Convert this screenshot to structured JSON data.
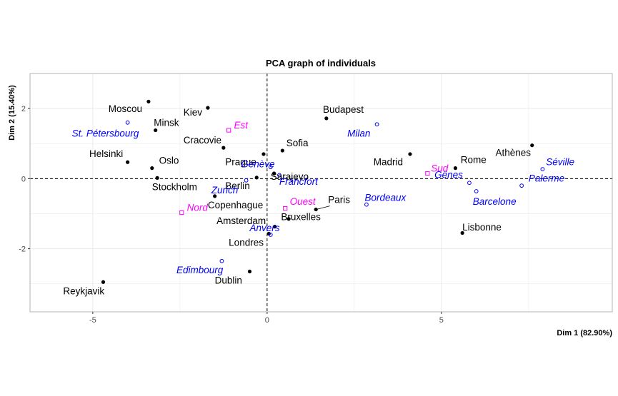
{
  "chart_data": {
    "type": "scatter",
    "title": "PCA graph of individuals",
    "xlabel": "Dim 1 (82.90%)",
    "ylabel": "Dim 2 (15.40%)",
    "xlim": [
      -6.8,
      9.9
    ],
    "ylim": [
      -3.8,
      3.0
    ],
    "xticks": [
      -5,
      0,
      5
    ],
    "yticks": [
      -2,
      0,
      2
    ],
    "grid": true,
    "reference_lines": {
      "x": 0,
      "y": 0,
      "style": "dashed"
    },
    "colors": {
      "active": "#000000",
      "supplementary": "#0000ff",
      "categorical": "#ff00ff"
    },
    "series": [
      {
        "marker": "filled-circle",
        "color": "#000000",
        "points": [
          {
            "label": "Moscou",
            "x": -3.4,
            "y": 2.2
          },
          {
            "label": "Kiev",
            "x": -1.7,
            "y": 2.02
          },
          {
            "label": "Minsk",
            "x": -3.2,
            "y": 1.38
          },
          {
            "label": "Cracovie",
            "x": -1.25,
            "y": 0.88
          },
          {
            "label": "Budapest",
            "x": 1.7,
            "y": 1.72
          },
          {
            "label": "Sofia",
            "x": 0.44,
            "y": 0.8
          },
          {
            "label": "Helsinki",
            "x": -4.0,
            "y": 0.47
          },
          {
            "label": "Oslo",
            "x": -3.3,
            "y": 0.3
          },
          {
            "label": "Prague",
            "x": -0.1,
            "y": 0.7
          },
          {
            "label": "Madrid",
            "x": 4.1,
            "y": 0.7
          },
          {
            "label": "Athènes",
            "x": 7.6,
            "y": 0.95
          },
          {
            "label": "Rome",
            "x": 5.4,
            "y": 0.3
          },
          {
            "label": "Sarajevo",
            "x": 0.2,
            "y": 0.15
          },
          {
            "label": "Stockholm",
            "x": -3.15,
            "y": 0.02
          },
          {
            "label": "Berlin",
            "x": -0.3,
            "y": 0.03
          },
          {
            "label": "Copenhague",
            "x": -1.5,
            "y": -0.5
          },
          {
            "label": "Paris",
            "x": 1.4,
            "y": -0.88
          },
          {
            "label": "Bruxelles",
            "x": 0.62,
            "y": -1.15
          },
          {
            "label": "Amsterdam",
            "x": 0.22,
            "y": -1.37
          },
          {
            "label": "Londres",
            "x": 0.05,
            "y": -1.57
          },
          {
            "label": "Lisbonne",
            "x": 5.6,
            "y": -1.55
          },
          {
            "label": "Dublin",
            "x": -0.5,
            "y": -2.65
          },
          {
            "label": "Reykjavik",
            "x": -4.7,
            "y": -2.95
          }
        ]
      },
      {
        "marker": "open-circle",
        "color": "#0000ff",
        "points": [
          {
            "label": "St. Pétersbourg",
            "x": -4.0,
            "y": 1.6
          },
          {
            "label": "Milan",
            "x": 3.15,
            "y": 1.55
          },
          {
            "label": "Genève",
            "x": 0.1,
            "y": 0.33
          },
          {
            "label": "Francfort",
            "x": 0.35,
            "y": 0.1
          },
          {
            "label": "Séville",
            "x": 7.9,
            "y": 0.27
          },
          {
            "label": "Gênes",
            "x": 5.8,
            "y": -0.12
          },
          {
            "label": "Palerme",
            "x": 7.3,
            "y": -0.2
          },
          {
            "label": "Zurich",
            "x": -0.6,
            "y": -0.05
          },
          {
            "label": "Barcelone",
            "x": 6.0,
            "y": -0.36
          },
          {
            "label": "Bordeaux",
            "x": 2.85,
            "y": -0.74
          },
          {
            "label": "Anvers",
            "x": 0.1,
            "y": -1.6
          },
          {
            "label": "Edimbourg",
            "x": -1.3,
            "y": -2.35
          }
        ]
      },
      {
        "marker": "open-square",
        "color": "#ff00ff",
        "points": [
          {
            "label": "Est",
            "x": -1.1,
            "y": 1.38
          },
          {
            "label": "Sud",
            "x": 4.6,
            "y": 0.15
          },
          {
            "label": "Nord",
            "x": -2.45,
            "y": -0.97
          },
          {
            "label": "Ouest",
            "x": 0.52,
            "y": -0.85
          }
        ]
      }
    ],
    "labels": [
      {
        "text": "Moscou",
        "x": -4.55,
        "y": 1.9,
        "color": "#000000",
        "style": "normal"
      },
      {
        "text": "Kiev",
        "x": -2.4,
        "y": 1.8,
        "color": "#000000",
        "style": "normal"
      },
      {
        "text": "Minsk",
        "x": -3.25,
        "y": 1.5,
        "color": "#000000",
        "style": "normal"
      },
      {
        "text": "Cracovie",
        "x": -2.4,
        "y": 1.0,
        "color": "#000000",
        "style": "normal"
      },
      {
        "text": "Budapest",
        "x": 1.6,
        "y": 1.88,
        "color": "#000000",
        "style": "normal"
      },
      {
        "text": "Sofia",
        "x": 0.55,
        "y": 0.92,
        "color": "#000000",
        "style": "normal"
      },
      {
        "text": "Helsinki",
        "x": -5.1,
        "y": 0.62,
        "color": "#000000",
        "style": "normal"
      },
      {
        "text": "Oslo",
        "x": -3.1,
        "y": 0.42,
        "color": "#000000",
        "style": "normal"
      },
      {
        "text": "Prague",
        "x": -1.2,
        "y": 0.38,
        "color": "#000000",
        "style": "normal"
      },
      {
        "text": "Madrid",
        "x": 3.05,
        "y": 0.38,
        "color": "#000000",
        "style": "normal"
      },
      {
        "text": "Athènes",
        "x": 6.55,
        "y": 0.65,
        "color": "#000000",
        "style": "normal"
      },
      {
        "text": "Rome",
        "x": 5.55,
        "y": 0.45,
        "color": "#000000",
        "style": "normal"
      },
      {
        "text": "Sarajevo",
        "x": 0.1,
        "y": -0.03,
        "color": "#000000",
        "style": "normal"
      },
      {
        "text": "Stockholm",
        "x": -3.3,
        "y": -0.33,
        "color": "#000000",
        "style": "normal"
      },
      {
        "text": "Berlin",
        "x": -1.2,
        "y": -0.3,
        "color": "#000000",
        "style": "normal"
      },
      {
        "text": "Copenhague",
        "x": -1.7,
        "y": -0.85,
        "color": "#000000",
        "style": "normal"
      },
      {
        "text": "Paris",
        "x": 1.75,
        "y": -0.7,
        "color": "#000000",
        "style": "normal"
      },
      {
        "text": "Bruxelles",
        "x": 0.4,
        "y": -1.18,
        "color": "#000000",
        "style": "normal"
      },
      {
        "text": "Amsterdam",
        "x": -1.45,
        "y": -1.3,
        "color": "#000000",
        "style": "normal"
      },
      {
        "text": "Londres",
        "x": -1.1,
        "y": -1.92,
        "color": "#000000",
        "style": "normal"
      },
      {
        "text": "Lisbonne",
        "x": 5.6,
        "y": -1.48,
        "color": "#000000",
        "style": "normal"
      },
      {
        "text": "Dublin",
        "x": -1.5,
        "y": -3.0,
        "color": "#000000",
        "style": "normal"
      },
      {
        "text": "Reykjavik",
        "x": -5.85,
        "y": -3.3,
        "color": "#000000",
        "style": "normal"
      },
      {
        "text": "St. Pétersbourg",
        "x": -5.6,
        "y": 1.2,
        "color": "#0000ff",
        "style": "italic"
      },
      {
        "text": "Milan",
        "x": 2.3,
        "y": 1.2,
        "color": "#0000ff",
        "style": "italic"
      },
      {
        "text": "Genève",
        "x": -0.75,
        "y": 0.32,
        "color": "#0000ff",
        "style": "italic"
      },
      {
        "text": "Francfort",
        "x": 0.35,
        "y": -0.18,
        "color": "#0000ff",
        "style": "italic"
      },
      {
        "text": "Séville",
        "x": 8.0,
        "y": 0.38,
        "color": "#0000ff",
        "style": "italic"
      },
      {
        "text": "Gênes",
        "x": 4.8,
        "y": 0.02,
        "color": "#0000ff",
        "style": "italic"
      },
      {
        "text": "Palerme",
        "x": 7.5,
        "y": -0.08,
        "color": "#0000ff",
        "style": "italic"
      },
      {
        "text": "Zurich",
        "x": -1.6,
        "y": -0.42,
        "color": "#0000ff",
        "style": "italic"
      },
      {
        "text": "Barcelone",
        "x": 5.9,
        "y": -0.75,
        "color": "#0000ff",
        "style": "italic"
      },
      {
        "text": "Bordeaux",
        "x": 2.8,
        "y": -0.63,
        "color": "#0000ff",
        "style": "italic"
      },
      {
        "text": "Anvers",
        "x": -0.5,
        "y": -1.5,
        "color": "#0000ff",
        "style": "italic"
      },
      {
        "text": "Edimbourg",
        "x": -2.6,
        "y": -2.7,
        "color": "#0000ff",
        "style": "italic"
      },
      {
        "text": "Est",
        "x": -0.95,
        "y": 1.43,
        "color": "#ff00ff",
        "style": "italic"
      },
      {
        "text": "Sud",
        "x": 4.7,
        "y": 0.2,
        "color": "#ff00ff",
        "style": "italic"
      },
      {
        "text": "Nord",
        "x": -2.3,
        "y": -0.92,
        "color": "#ff00ff",
        "style": "italic"
      },
      {
        "text": "Ouest",
        "x": 0.65,
        "y": -0.75,
        "color": "#ff00ff",
        "style": "italic"
      }
    ],
    "connectors": [
      {
        "from": [
          1.4,
          -0.88
        ],
        "to": [
          1.8,
          -0.78
        ]
      }
    ]
  }
}
